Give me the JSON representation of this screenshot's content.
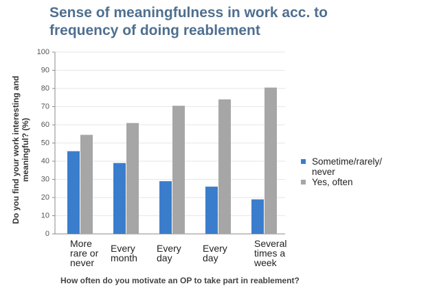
{
  "chart_data": {
    "type": "bar",
    "title": "Sense of meaningfulness in work acc. to frequency of doing reablement",
    "ylabel": [
      "Do you find your work interesting and",
      "meaningful? (%)"
    ],
    "xlabel": "How often do you motivate an OP to take part in reablement?",
    "categories": [
      "More rare or never",
      "Every month",
      "Every day",
      "Every day",
      "Several times a week"
    ],
    "series": [
      {
        "name": "Sometime/rarely/ never",
        "color": "#3a7dcc",
        "values": [
          45.5,
          39,
          29,
          26,
          19
        ]
      },
      {
        "name": "Yes, often",
        "color": "#a6a6a6",
        "values": [
          54.5,
          61,
          70.5,
          74,
          80.5
        ]
      }
    ],
    "ylim": [
      0,
      100
    ],
    "yticks": [
      0,
      10,
      20,
      30,
      40,
      50,
      60,
      70,
      80,
      90,
      100
    ],
    "grid": true,
    "legend": "right"
  }
}
